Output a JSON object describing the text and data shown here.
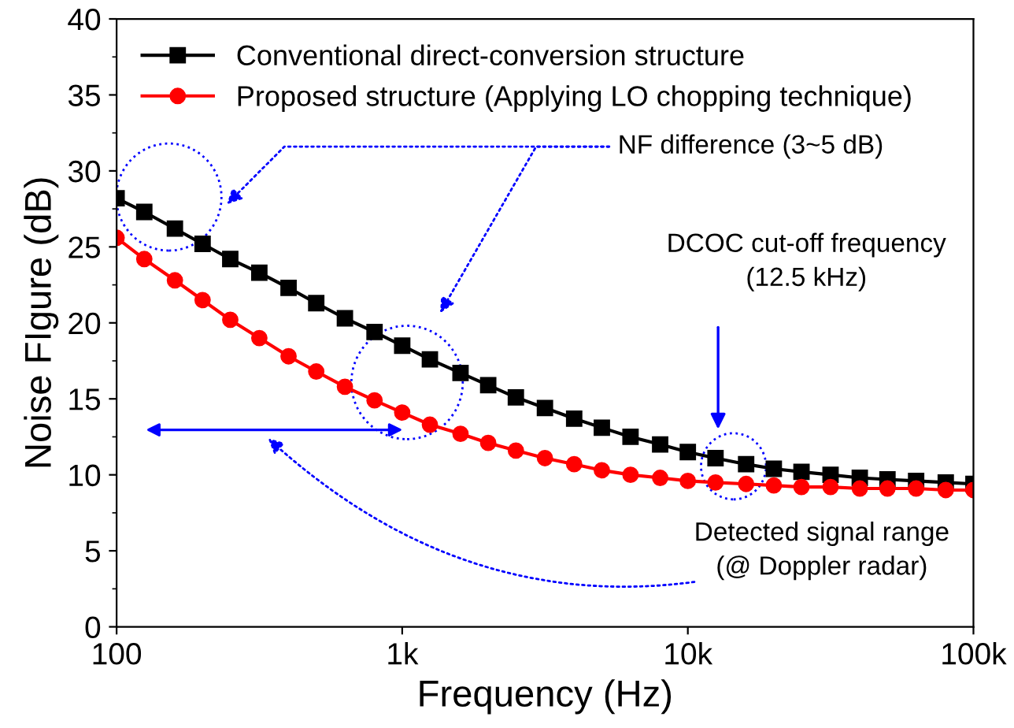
{
  "chart_data": {
    "type": "line",
    "xlabel": "Frequency (Hz)",
    "ylabel": "Noise FIgure (dB)",
    "log": "x",
    "x": [
      100,
      125,
      160,
      200,
      250,
      316,
      400,
      500,
      630,
      800,
      1000,
      1250,
      1600,
      2000,
      2500,
      3160,
      4000,
      5000,
      6300,
      8000,
      10000,
      12500,
      16000,
      20000,
      25000,
      31600,
      40000,
      50000,
      63000,
      80000,
      100000
    ],
    "series": [
      {
        "name": "Conventional direct-conversion structure",
        "color": "#000000",
        "marker": "square",
        "values": [
          28.2,
          27.3,
          26.2,
          25.2,
          24.2,
          23.3,
          22.3,
          21.3,
          20.3,
          19.4,
          18.5,
          17.6,
          16.7,
          15.9,
          15.1,
          14.4,
          13.7,
          13.1,
          12.5,
          12.0,
          11.5,
          11.1,
          10.7,
          10.4,
          10.2,
          10.0,
          9.8,
          9.7,
          9.6,
          9.5,
          9.4
        ]
      },
      {
        "name": "Proposed structure (Applying LO chopping technique)",
        "color": "#ff0000",
        "marker": "circle",
        "values": [
          25.6,
          24.2,
          22.8,
          21.5,
          20.2,
          19.0,
          17.8,
          16.8,
          15.8,
          14.9,
          14.1,
          13.3,
          12.7,
          12.1,
          11.6,
          11.1,
          10.7,
          10.3,
          10.0,
          9.8,
          9.6,
          9.5,
          9.4,
          9.3,
          9.2,
          9.2,
          9.1,
          9.1,
          9.1,
          9.0,
          9.0
        ]
      }
    ],
    "xlim": [
      100,
      100000
    ],
    "xticks": [
      {
        "value": 100,
        "label": "100"
      },
      {
        "value": 1000,
        "label": "1k"
      },
      {
        "value": 10000,
        "label": "10k"
      },
      {
        "value": 100000,
        "label": "100k"
      }
    ],
    "ylim": [
      0,
      40
    ],
    "yticks": [
      0,
      5,
      10,
      15,
      20,
      25,
      30,
      35,
      40
    ],
    "grid": false,
    "legend": "top left",
    "line_style": "solid",
    "annotations": [
      "NF difference (3~5 dB)",
      "DCOC cut-off frequency\n(12.5 kHz)",
      "Detected signal range\n(@ Doppler radar)"
    ]
  }
}
